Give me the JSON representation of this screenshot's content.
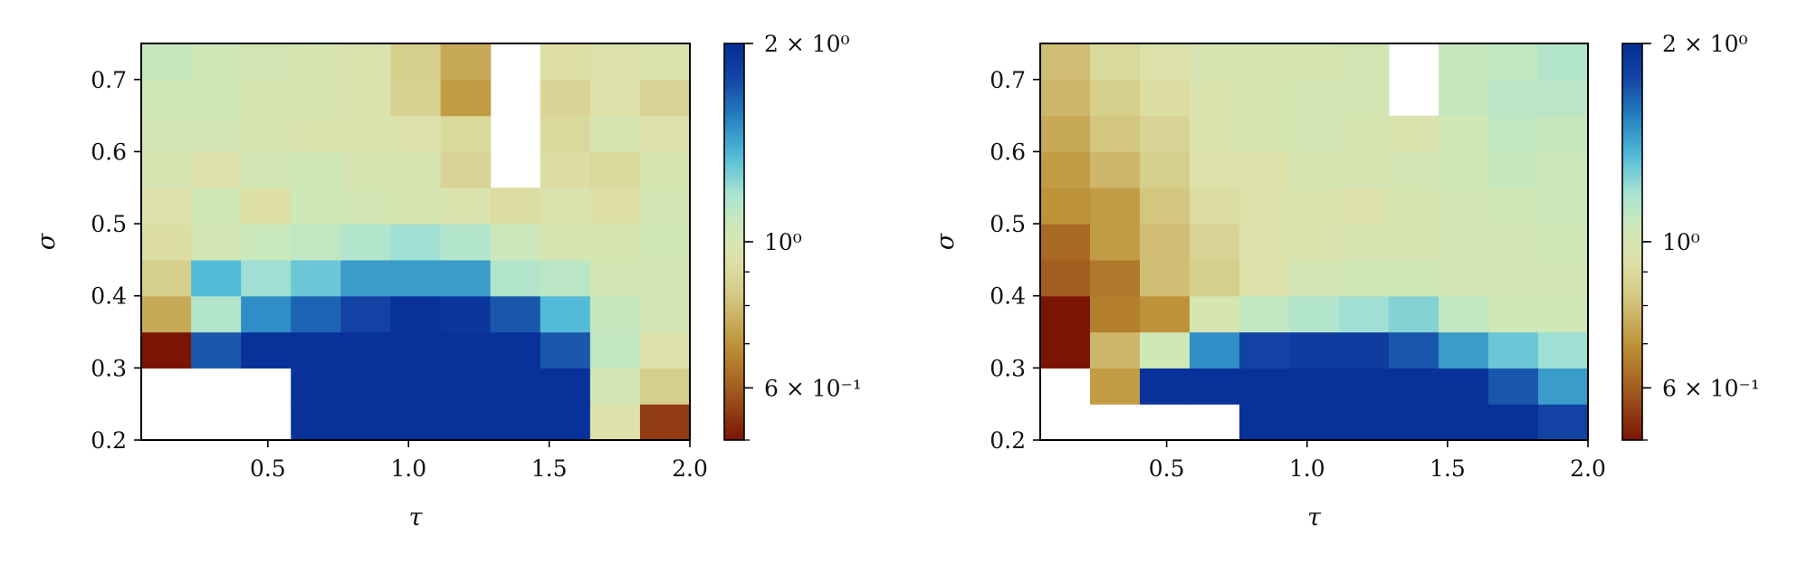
{
  "chart_data": [
    {
      "type": "heatmap",
      "title": "",
      "xlabel": "τ",
      "ylabel": "σ",
      "xlim": [
        0.05,
        2.0
      ],
      "ylim": [
        0.2,
        0.75
      ],
      "x_ticks": [
        "0.5",
        "1.0",
        "1.5",
        "2.0"
      ],
      "y_ticks": [
        "0.2",
        "0.3",
        "0.4",
        "0.5",
        "0.6",
        "0.7"
      ],
      "colorbar": {
        "scale": "log",
        "range": [
          0.5,
          2.0
        ],
        "colormap": "earth (brown → beige → light green → teal → blue)",
        "tick_labels": [
          "2 × 10⁰",
          "10⁰",
          "6 × 10⁻¹"
        ]
      },
      "grid_shape": [
        11,
        11
      ],
      "x_centers": [
        0.14,
        0.32,
        0.5,
        0.68,
        0.86,
        1.04,
        1.22,
        1.4,
        1.58,
        1.76,
        1.94
      ],
      "y_centers": [
        0.225,
        0.275,
        0.325,
        0.375,
        0.425,
        0.475,
        0.525,
        0.575,
        0.625,
        0.675,
        0.725
      ],
      "values": [
        [
          null,
          null,
          null,
          1.95,
          1.95,
          1.95,
          1.95,
          1.95,
          1.95,
          0.95,
          0.55
        ],
        [
          null,
          null,
          null,
          1.95,
          1.95,
          1.95,
          1.95,
          1.95,
          1.95,
          1.02,
          0.85
        ],
        [
          0.5,
          1.7,
          1.95,
          1.95,
          1.95,
          1.95,
          1.95,
          1.95,
          1.7,
          1.1,
          0.95
        ],
        [
          0.75,
          1.15,
          1.5,
          1.65,
          1.8,
          1.95,
          1.9,
          1.7,
          1.35,
          1.08,
          1.02
        ],
        [
          0.85,
          1.35,
          1.2,
          1.3,
          1.45,
          1.45,
          1.45,
          1.15,
          1.12,
          1.02,
          1.02
        ],
        [
          0.92,
          1.02,
          1.07,
          1.1,
          1.15,
          1.2,
          1.15,
          1.06,
          1.0,
          1.0,
          1.03
        ],
        [
          0.95,
          1.05,
          0.93,
          1.05,
          1.02,
          1.0,
          0.97,
          0.92,
          0.97,
          0.93,
          1.02
        ],
        [
          1.0,
          0.95,
          1.02,
          1.05,
          1.0,
          1.0,
          0.88,
          null,
          0.92,
          0.9,
          1.0
        ],
        [
          1.02,
          1.02,
          1.0,
          0.97,
          0.98,
          0.95,
          0.9,
          null,
          0.9,
          1.0,
          0.95
        ],
        [
          1.05,
          1.05,
          1.0,
          1.0,
          0.97,
          0.87,
          0.72,
          null,
          0.88,
          0.95,
          0.88
        ],
        [
          1.08,
          1.05,
          1.02,
          1.0,
          0.97,
          0.85,
          0.75,
          null,
          0.93,
          0.95,
          0.98
        ]
      ]
    },
    {
      "type": "heatmap",
      "title": "",
      "xlabel": "τ",
      "ylabel": "σ",
      "xlim": [
        0.05,
        2.0
      ],
      "ylim": [
        0.2,
        0.75
      ],
      "x_ticks": [
        "0.5",
        "1.0",
        "1.5",
        "2.0"
      ],
      "y_ticks": [
        "0.2",
        "0.3",
        "0.4",
        "0.5",
        "0.6",
        "0.7"
      ],
      "colorbar": {
        "scale": "log",
        "range": [
          0.5,
          2.0
        ],
        "colormap": "earth (brown → beige → light green → teal → blue)",
        "tick_labels": [
          "2 × 10⁰",
          "10⁰",
          "6 × 10⁻¹"
        ]
      },
      "grid_shape": [
        11,
        11
      ],
      "x_centers": [
        0.14,
        0.32,
        0.5,
        0.68,
        0.86,
        1.04,
        1.22,
        1.4,
        1.58,
        1.76,
        1.94
      ],
      "y_centers": [
        0.225,
        0.275,
        0.325,
        0.375,
        0.425,
        0.475,
        0.525,
        0.575,
        0.625,
        0.675,
        0.725
      ],
      "values": [
        [
          null,
          null,
          null,
          null,
          1.95,
          1.95,
          1.95,
          1.95,
          1.95,
          1.95,
          1.8
        ],
        [
          null,
          0.72,
          1.95,
          1.95,
          1.95,
          1.95,
          1.95,
          1.95,
          1.95,
          1.7,
          1.45
        ],
        [
          0.5,
          0.78,
          1.05,
          1.5,
          1.8,
          1.85,
          1.85,
          1.7,
          1.45,
          1.3,
          1.2
        ],
        [
          0.5,
          0.66,
          0.7,
          1.0,
          1.1,
          1.15,
          1.2,
          1.25,
          1.1,
          1.05,
          1.05
        ],
        [
          0.6,
          0.65,
          0.8,
          0.85,
          0.95,
          1.02,
          1.03,
          1.05,
          1.02,
          1.02,
          1.02
        ],
        [
          0.62,
          0.72,
          0.8,
          0.88,
          0.95,
          0.97,
          1.0,
          1.0,
          1.02,
          1.02,
          1.04
        ],
        [
          0.7,
          0.72,
          0.82,
          0.92,
          0.95,
          0.97,
          0.95,
          1.0,
          1.02,
          1.04,
          1.06
        ],
        [
          0.72,
          0.78,
          0.85,
          0.95,
          0.95,
          1.0,
          1.0,
          1.02,
          1.05,
          1.08,
          1.06
        ],
        [
          0.75,
          0.82,
          0.88,
          0.97,
          1.0,
          1.02,
          1.0,
          0.97,
          1.05,
          1.1,
          1.08
        ],
        [
          0.78,
          0.85,
          0.92,
          0.97,
          1.0,
          1.02,
          1.02,
          null,
          1.08,
          1.12,
          1.12
        ],
        [
          0.8,
          0.9,
          0.95,
          1.0,
          1.0,
          1.0,
          1.02,
          null,
          1.08,
          1.1,
          1.15
        ]
      ]
    }
  ]
}
